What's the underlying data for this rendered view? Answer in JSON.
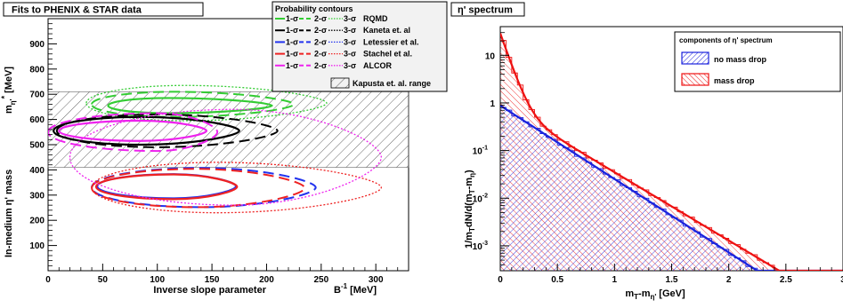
{
  "chart_data": [
    {
      "type": "contour",
      "title": "Fits to PHENIX & STAR data",
      "xlabel": "Inverse slope parameter",
      "xlabel_sym": "B",
      "xlabel_exp": "-1",
      "xlabel_unit": "[MeV]",
      "ylabel": "In-medium η' mass",
      "ylabel_sym": "m",
      "ylabel_sub": "η'",
      "ylabel_star": "*",
      "ylabel_unit": "[MeV]",
      "xlim": [
        0,
        330
      ],
      "ylim": [
        0,
        1000
      ],
      "x_ticks": [
        "0",
        "50",
        "100",
        "150",
        "200",
        "250",
        "300"
      ],
      "y_ticks": [
        "100",
        "200",
        "300",
        "400",
        "500",
        "600",
        "700",
        "800",
        "900"
      ],
      "legend": {
        "title": "Probability contours",
        "sigma1": "1-σ",
        "sigma2": "2-σ",
        "sigma3": "3-σ",
        "entries": [
          {
            "name": "RQMD",
            "color": "#33cc33"
          },
          {
            "name": "Kaneta et. al",
            "color": "#000000"
          },
          {
            "name": "Letessier et al.",
            "color": "#2233ee"
          },
          {
            "name": "Stachel et al.",
            "color": "#ee2222"
          },
          {
            "name": "ALCOR",
            "color": "#ee22ee"
          }
        ],
        "band_label": "Kapusta et. al. range"
      },
      "band": {
        "ymin": 410,
        "ymax": 710
      },
      "contours": [
        {
          "name": "RQMD",
          "color": "#33cc33",
          "levels": [
            {
              "cx": 110,
              "cy": 655,
              "rxl": 55,
              "rxr": 95,
              "ry": 30
            },
            {
              "cx": 115,
              "cy": 660,
              "rxl": 75,
              "rxr": 110,
              "ry": 50
            },
            {
              "cx": 125,
              "cy": 665,
              "rxl": 90,
              "rxr": 130,
              "ry": 70
            }
          ]
        },
        {
          "name": "Kaneta et. al",
          "color": "#000000",
          "levels": [
            {
              "cx": 85,
              "cy": 555,
              "rxl": 80,
              "rxr": 90,
              "ry": 55
            },
            {
              "cx": 100,
              "cy": 555,
              "rxl": 92,
              "rxr": 110,
              "ry": 65
            }
          ]
        },
        {
          "name": "Letessier et al.",
          "color": "#2233ee",
          "levels": [
            {
              "cx": 115,
              "cy": 335,
              "rxl": 70,
              "rxr": 57,
              "ry": 48
            },
            {
              "cx": 140,
              "cy": 330,
              "rxl": 100,
              "rxr": 105,
              "ry": 78
            }
          ]
        },
        {
          "name": "Stachel et al.",
          "color": "#ee2222",
          "levels": [
            {
              "cx": 115,
              "cy": 333,
              "rxl": 71,
              "rxr": 58,
              "ry": 49
            },
            {
              "cx": 135,
              "cy": 328,
              "rxl": 95,
              "rxr": 100,
              "ry": 76
            },
            {
              "cx": 155,
              "cy": 330,
              "rxl": 115,
              "rxr": 150,
              "ry": 100
            }
          ]
        },
        {
          "name": "ALCOR",
          "color": "#ee22ee",
          "levels": [
            {
              "cx": 85,
              "cy": 555,
              "rxl": 75,
              "rxr": 60,
              "ry": 40
            },
            {
              "cx": 100,
              "cy": 550,
              "rxl": 100,
              "rxr": 55,
              "ry": 75
            },
            {
              "cx": 170,
              "cy": 450,
              "rxl": 150,
              "rxr": 135,
              "ry": 190
            }
          ]
        }
      ]
    },
    {
      "type": "area",
      "title": "η' spectrum",
      "xlabel": "m",
      "xlabel_sub": "T",
      "xlabel_mid": "-m",
      "xlabel_sub2": "η'",
      "xlabel_unit": "[GeV]",
      "ylabel": "1/m",
      "ylabel_sub": "T",
      "ylabel_mid": "dN/d(m",
      "ylabel_sub2": "T",
      "ylabel_mid2": "-m",
      "ylabel_sub3": "η",
      "ylabel_end": ")",
      "xlim": [
        0,
        3
      ],
      "ylim": [
        0.0003,
        40
      ],
      "log_y": true,
      "x_ticks": [
        "0",
        "0.5",
        "1",
        "1.5",
        "2",
        "2.5",
        "3"
      ],
      "y_ticks": [
        {
          "value": 10,
          "base": "10",
          "exp": ""
        },
        {
          "value": 1,
          "base": "1",
          "exp": ""
        },
        {
          "value": 0.1,
          "base": "10",
          "exp": "-1"
        },
        {
          "value": 0.01,
          "base": "10",
          "exp": "-2"
        },
        {
          "value": 0.001,
          "base": "10",
          "exp": "-3"
        }
      ],
      "legend_title": "components of η' spectrum",
      "series": [
        {
          "name": "no mass drop",
          "color": "#1a22dd",
          "a": 0.88,
          "slope": 3.55,
          "b": 0,
          "c": 0
        },
        {
          "name": "mass drop",
          "color": "#ee1111",
          "a": 0.95,
          "slope": 3.3,
          "b": 28,
          "c": 16
        }
      ]
    }
  ]
}
